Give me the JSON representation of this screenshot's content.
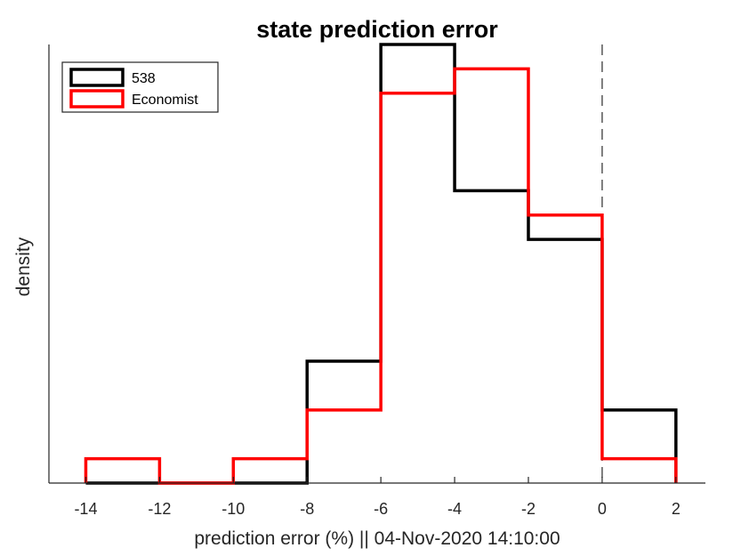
{
  "chart_data": {
    "type": "histogram",
    "title": "state prediction error",
    "xlabel": "prediction error (%)  ||  04-Nov-2020 14:10:00",
    "ylabel": "density",
    "xlim": [
      -15,
      2.8
    ],
    "ylim": [
      0,
      18
    ],
    "x_ticks": [
      -14,
      -12,
      -10,
      -8,
      -6,
      -4,
      -2,
      0,
      2
    ],
    "y_ticks_shown": false,
    "bin_edges": [
      -14,
      -12,
      -10,
      -8,
      -6,
      -4,
      -2,
      0,
      2
    ],
    "series": [
      {
        "name": "538",
        "color": "#000000",
        "values": [
          0,
          0,
          0,
          5,
          18,
          12,
          10,
          3
        ]
      },
      {
        "name": "Economist",
        "color": "#ff0000",
        "values": [
          1,
          0,
          1,
          3,
          16,
          17,
          11,
          1
        ]
      }
    ],
    "reference_line": {
      "x": 0,
      "style": "dashed",
      "color": "#555555"
    },
    "legend": {
      "placement": "top-left",
      "entries": [
        "538",
        "Economist"
      ]
    },
    "grid": false
  }
}
